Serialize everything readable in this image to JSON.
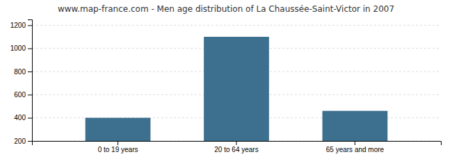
{
  "chart_data": {
    "type": "bar",
    "title": "www.map-france.com - Men age distribution of La Chaussée-Saint-Victor in 2007",
    "categories": [
      "0 to 19 years",
      "20 to 64 years",
      "65 years and more"
    ],
    "values": [
      400,
      1100,
      460
    ],
    "color": "#3d6f8e",
    "ylim": [
      200,
      1250
    ],
    "yticks": [
      200,
      400,
      600,
      800,
      1000,
      1200
    ],
    "grid": true
  }
}
